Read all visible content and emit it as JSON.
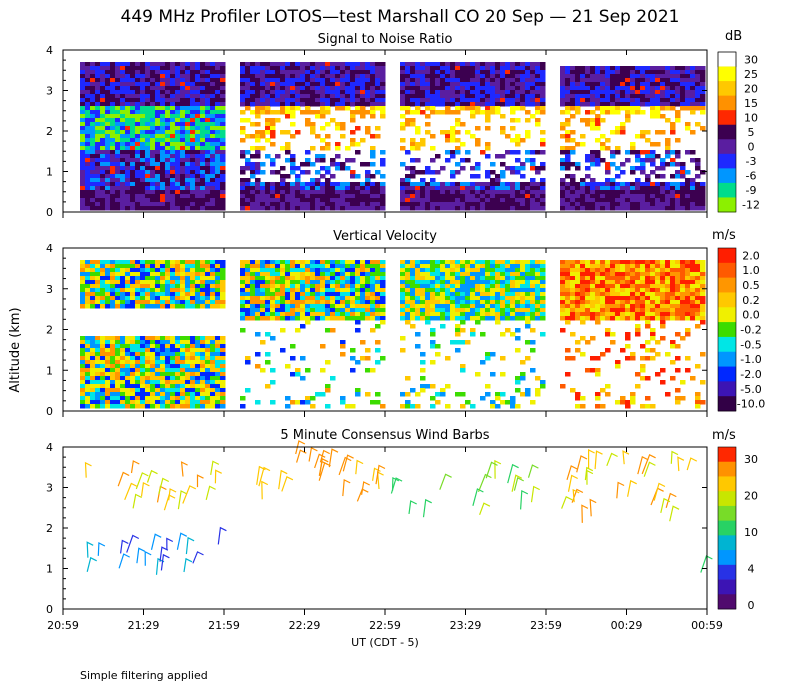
{
  "page": {
    "title": "449 MHz Profiler LOTOS—test Marshall CO 20 Sep — 21 Sep 2021",
    "ylabel": "Altitude (km)",
    "xlabel": "UT  (CDT - 5)",
    "footnote": "Simple filtering applied"
  },
  "chart_data": [
    {
      "type": "heatmap",
      "title": "Signal to Noise Ratio",
      "units": "dB",
      "ylim": [
        0,
        4
      ],
      "y_ticks": [
        "0",
        "1",
        "2",
        "3",
        "4"
      ],
      "x_ticks": [
        "20:59",
        "21:29",
        "21:59",
        "22:29",
        "22:59",
        "23:29",
        "23:59",
        "00:29",
        "00:59"
      ],
      "colorbar": {
        "labels": [
          "30",
          "25",
          "20",
          "15",
          "10",
          "5",
          "0",
          "-3",
          "-6",
          "-9",
          "-12"
        ],
        "colors": [
          "#ffffff",
          "#ffff00",
          "#ffc800",
          "#ff9100",
          "#ff2800",
          "#3c0050",
          "#5a1ea0",
          "#1e28ff",
          "#0096ff",
          "#00dc8c",
          "#8cf000"
        ]
      },
      "data_gaps_ut": [
        [
          "21:59",
          "22:05"
        ],
        [
          "22:59",
          "23:05"
        ],
        [
          "23:59",
          "00:05"
        ]
      ]
    },
    {
      "type": "heatmap",
      "title": "Vertical Velocity",
      "units": "m/s",
      "ylim": [
        0,
        4
      ],
      "y_ticks": [
        "0",
        "1",
        "2",
        "3",
        "4"
      ],
      "x_ticks": [
        "20:59",
        "21:29",
        "21:59",
        "22:29",
        "22:59",
        "23:29",
        "23:59",
        "00:29",
        "00:59"
      ],
      "colorbar": {
        "labels": [
          "2.0",
          "1.0",
          "0.5",
          "0.2",
          "0.0",
          "-0.2",
          "-0.5",
          "-1.0",
          "-2.0",
          "-5.0",
          "-10.0"
        ],
        "colors": [
          "#ff1e00",
          "#ff5a00",
          "#ff9600",
          "#ffc800",
          "#f0f000",
          "#3cdc00",
          "#00e6e6",
          "#0096ff",
          "#0028ff",
          "#3c14b4",
          "#320046"
        ]
      },
      "data_gaps_ut": [
        [
          "21:59",
          "22:05"
        ],
        [
          "22:59",
          "23:05"
        ],
        [
          "23:59",
          "00:05"
        ]
      ]
    },
    {
      "type": "scatter",
      "subtype": "wind_barbs",
      "title": "5 Minute Consensus Wind Barbs",
      "units": "m/s",
      "ylim": [
        0,
        4
      ],
      "y_ticks": [
        "0",
        "1",
        "2",
        "3",
        "4"
      ],
      "x_ticks": [
        "20:59",
        "21:29",
        "21:59",
        "22:29",
        "22:59",
        "23:29",
        "23:59",
        "00:29",
        "00:59"
      ],
      "colorbar": {
        "labels": [
          "30",
          "20",
          "10",
          "4",
          "0"
        ],
        "colors": [
          "#ff2800",
          "#ff9100",
          "#ffc800",
          "#c8e600",
          "#78dc28",
          "#28d264",
          "#00b4d2",
          "#0096ff",
          "#2832e6",
          "#3c14b4",
          "#500a6e"
        ]
      }
    }
  ]
}
